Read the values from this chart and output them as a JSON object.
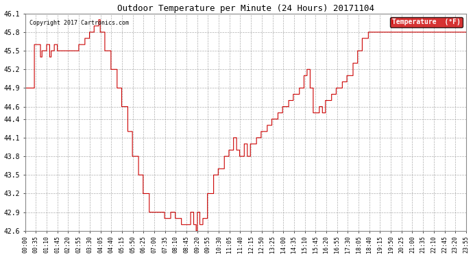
{
  "title": "Outdoor Temperature per Minute (24 Hours) 20171104",
  "copyright": "Copyright 2017 Cartronics.com",
  "legend_label": "Temperature  (°F)",
  "line_color": "#cc0000",
  "background_color": "#ffffff",
  "plot_bg_color": "#ffffff",
  "grid_color": "#999999",
  "ylim": [
    42.6,
    46.1
  ],
  "yticks": [
    42.6,
    42.9,
    43.2,
    43.5,
    43.8,
    44.1,
    44.4,
    44.6,
    44.9,
    45.2,
    45.5,
    45.8,
    46.1
  ],
  "xtick_labels": [
    "00:00",
    "00:35",
    "01:10",
    "01:45",
    "02:20",
    "02:55",
    "03:30",
    "04:05",
    "04:40",
    "05:15",
    "05:50",
    "06:25",
    "07:00",
    "07:35",
    "08:10",
    "08:45",
    "09:20",
    "09:55",
    "10:30",
    "11:05",
    "11:40",
    "12:15",
    "12:50",
    "13:25",
    "14:00",
    "14:35",
    "15:10",
    "15:45",
    "16:20",
    "16:55",
    "17:30",
    "18:05",
    "18:40",
    "19:15",
    "19:50",
    "20:25",
    "21:00",
    "21:35",
    "22:10",
    "22:45",
    "23:20",
    "23:55"
  ]
}
